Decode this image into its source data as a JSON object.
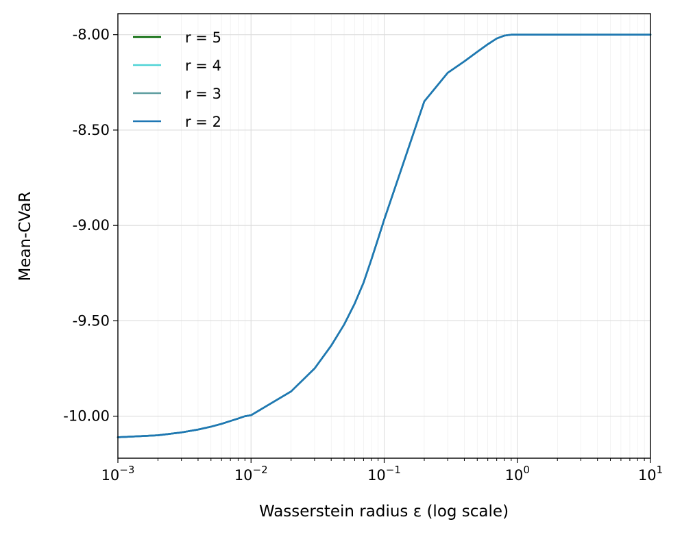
{
  "chart_data": {
    "type": "line",
    "xlabel": "Wasserstein radius ε (log scale)",
    "ylabel": "Mean-CVaR",
    "xscale": "log",
    "xlim": [
      0.001,
      10
    ],
    "ylim": [
      -10.22,
      -7.89
    ],
    "x_ticks": [
      {
        "value": 0.001,
        "base": "10",
        "exp": "−3"
      },
      {
        "value": 0.01,
        "base": "10",
        "exp": "−2"
      },
      {
        "value": 0.1,
        "base": "10",
        "exp": "−1"
      },
      {
        "value": 1,
        "base": "10",
        "exp": "0"
      },
      {
        "value": 10,
        "base": "10",
        "exp": "1"
      }
    ],
    "y_ticks": [
      {
        "value": -8.0,
        "label": "-8.00"
      },
      {
        "value": -8.5,
        "label": "-8.50"
      },
      {
        "value": -9.0,
        "label": "-9.00"
      },
      {
        "value": -9.5,
        "label": "-9.50"
      },
      {
        "value": -10.0,
        "label": "-10.00"
      }
    ],
    "grid": true,
    "legend_position": "top-left",
    "series": [
      {
        "name": "r = 5",
        "color": "#006400",
        "x": [
          0.001,
          0.002,
          0.003,
          0.004,
          0.005,
          0.006,
          0.007,
          0.008,
          0.009,
          0.01,
          0.02,
          0.03,
          0.04,
          0.05,
          0.06,
          0.07,
          0.08,
          0.09,
          0.1,
          0.2,
          0.3,
          0.4,
          0.5,
          0.6,
          0.7,
          0.8,
          0.9,
          1,
          2,
          5,
          10
        ],
        "y": [
          -10.11,
          -10.1,
          -10.085,
          -10.07,
          -10.055,
          -10.04,
          -10.025,
          -10.012,
          -10.0,
          -9.995,
          -9.87,
          -9.75,
          -9.63,
          -9.52,
          -9.41,
          -9.3,
          -9.18,
          -9.07,
          -8.97,
          -8.35,
          -8.2,
          -8.14,
          -8.09,
          -8.05,
          -8.02,
          -8.005,
          -8.0,
          -8.0,
          -8.0,
          -8.0,
          -8.0
        ]
      },
      {
        "name": "r = 4",
        "color": "#4fd3d6",
        "x": [
          0.001,
          0.002,
          0.003,
          0.004,
          0.005,
          0.006,
          0.007,
          0.008,
          0.009,
          0.01,
          0.02,
          0.03,
          0.04,
          0.05,
          0.06,
          0.07,
          0.08,
          0.09,
          0.1,
          0.2,
          0.3,
          0.4,
          0.5,
          0.6,
          0.7,
          0.8,
          0.9,
          1,
          2,
          5,
          10
        ],
        "y": [
          -10.11,
          -10.1,
          -10.085,
          -10.07,
          -10.055,
          -10.04,
          -10.025,
          -10.012,
          -10.0,
          -9.995,
          -9.87,
          -9.75,
          -9.63,
          -9.52,
          -9.41,
          -9.3,
          -9.18,
          -9.07,
          -8.97,
          -8.35,
          -8.2,
          -8.14,
          -8.09,
          -8.05,
          -8.02,
          -8.005,
          -8.0,
          -8.0,
          -8.0,
          -8.0,
          -8.0
        ]
      },
      {
        "name": "r = 3",
        "color": "#5f9ea0",
        "x": [
          0.001,
          0.002,
          0.003,
          0.004,
          0.005,
          0.006,
          0.007,
          0.008,
          0.009,
          0.01,
          0.02,
          0.03,
          0.04,
          0.05,
          0.06,
          0.07,
          0.08,
          0.09,
          0.1,
          0.2,
          0.3,
          0.4,
          0.5,
          0.6,
          0.7,
          0.8,
          0.9,
          1,
          2,
          5,
          10
        ],
        "y": [
          -10.11,
          -10.1,
          -10.085,
          -10.07,
          -10.055,
          -10.04,
          -10.025,
          -10.012,
          -10.0,
          -9.995,
          -9.87,
          -9.75,
          -9.63,
          -9.52,
          -9.41,
          -9.3,
          -9.18,
          -9.07,
          -8.97,
          -8.35,
          -8.2,
          -8.14,
          -8.09,
          -8.05,
          -8.02,
          -8.005,
          -8.0,
          -8.0,
          -8.0,
          -8.0,
          -8.0
        ]
      },
      {
        "name": "r = 2",
        "color": "#1f77b4",
        "x": [
          0.001,
          0.002,
          0.003,
          0.004,
          0.005,
          0.006,
          0.007,
          0.008,
          0.009,
          0.01,
          0.02,
          0.03,
          0.04,
          0.05,
          0.06,
          0.07,
          0.08,
          0.09,
          0.1,
          0.2,
          0.3,
          0.4,
          0.5,
          0.6,
          0.7,
          0.8,
          0.9,
          1,
          2,
          5,
          10
        ],
        "y": [
          -10.11,
          -10.1,
          -10.085,
          -10.07,
          -10.055,
          -10.04,
          -10.025,
          -10.012,
          -10.0,
          -9.995,
          -9.87,
          -9.75,
          -9.63,
          -9.52,
          -9.41,
          -9.3,
          -9.18,
          -9.07,
          -8.97,
          -8.35,
          -8.2,
          -8.14,
          -8.09,
          -8.05,
          -8.02,
          -8.005,
          -8.0,
          -8.0,
          -8.0,
          -8.0,
          -8.0
        ]
      }
    ]
  }
}
